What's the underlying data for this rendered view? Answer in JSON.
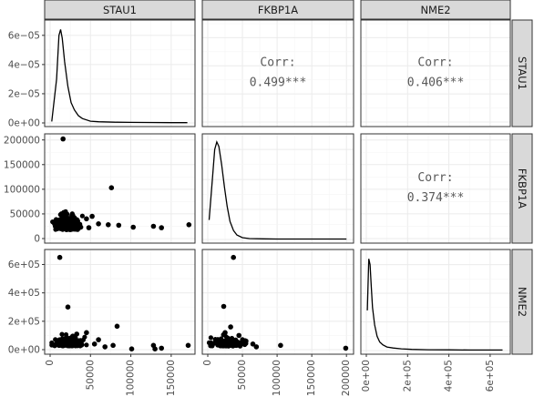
{
  "chart_data": {
    "type": "scatter",
    "title": "",
    "variables": [
      "STAU1",
      "FKBP1A",
      "NME2"
    ],
    "scales": {
      "STAU1": {
        "lim": [
          0,
          175000
        ],
        "ticks": [
          0,
          50000,
          100000,
          150000
        ],
        "tick_labels": [
          "0",
          "50000",
          "100000",
          "150000"
        ]
      },
      "FKBP1A": {
        "lim": [
          0,
          205000
        ],
        "ticks": [
          0,
          50000,
          100000,
          150000,
          200000
        ],
        "tick_labels": [
          "0",
          "50000",
          "100000",
          "150000",
          "200000"
        ]
      },
      "NME2": {
        "lim": [
          0,
          680000
        ],
        "ticks": [
          0,
          200000,
          400000,
          600000
        ],
        "tick_labels": [
          "0e+00",
          "2e+05",
          "4e+05",
          "6e+05"
        ]
      }
    },
    "density_y_axis": {
      "lim": [
        0,
        6.8e-05
      ],
      "ticks": [
        0,
        2e-05,
        4e-05,
        6e-05
      ],
      "tick_labels": [
        "0e+00",
        "2e−05",
        "4e−05",
        "6e−05"
      ]
    },
    "correlations": [
      {
        "row": "STAU1",
        "col": "FKBP1A",
        "label": "Corr:",
        "value": "0.499***"
      },
      {
        "row": "STAU1",
        "col": "NME2",
        "label": "Corr:",
        "value": "0.406***"
      },
      {
        "row": "FKBP1A",
        "col": "NME2",
        "label": "Corr:",
        "value": "0.374***"
      }
    ],
    "densities": {
      "STAU1": {
        "x": [
          2000,
          8000,
          11000,
          13000,
          15000,
          18000,
          22000,
          26000,
          30000,
          35000,
          40000,
          50000,
          60000,
          80000,
          100000,
          120000,
          150000,
          170000
        ],
        "y": [
          1e-06,
          3e-05,
          6e-05,
          6.4e-05,
          5.8e-05,
          4.2e-05,
          2.5e-05,
          1.4e-05,
          9e-06,
          5e-06,
          3e-06,
          1.2e-06,
          8e-07,
          5e-07,
          4e-07,
          3e-07,
          2e-07,
          2e-07
        ]
      },
      "FKBP1A": {
        "x": [
          2000,
          7000,
          10000,
          13000,
          16000,
          20000,
          24000,
          28000,
          32000,
          37000,
          42000,
          50000,
          60000,
          80000,
          100000,
          130000,
          160000,
          200000
        ],
        "y": [
          1.3e-05,
          4.2e-05,
          6e-05,
          6.5e-05,
          6.2e-05,
          5e-05,
          3.5e-05,
          2.2e-05,
          1.2e-05,
          6e-06,
          3e-06,
          1.2e-06,
          6e-07,
          4e-07,
          3e-07,
          3e-07,
          3e-07,
          3e-07
        ]
      },
      "NME2": {
        "x": [
          5000,
          12000,
          18000,
          24000,
          30000,
          40000,
          52000,
          65000,
          80000,
          100000,
          130000,
          170000,
          220000,
          300000,
          400000,
          500000,
          600000,
          660000
        ],
        "y": [
          2.8e-05,
          6.4e-05,
          6e-05,
          4.5e-05,
          3e-05,
          1.8e-05,
          1e-05,
          6e-06,
          4e-06,
          2.5e-06,
          1.8e-06,
          1.2e-06,
          8e-07,
          6e-07,
          5e-07,
          4e-07,
          4e-07,
          4e-07
        ]
      }
    },
    "scatter_panels": [
      {
        "row": "FKBP1A",
        "col": "STAU1",
        "outliers": [
          [
            16000,
            202000
          ],
          [
            76000,
            103000
          ],
          [
            45000,
            40000
          ],
          [
            60000,
            30000
          ],
          [
            72000,
            28000
          ],
          [
            85000,
            27000
          ],
          [
            103000,
            23000
          ],
          [
            128000,
            25000
          ],
          [
            138000,
            22000
          ],
          [
            172000,
            28000
          ],
          [
            52000,
            45000
          ],
          [
            48000,
            22000
          ]
        ],
        "cluster": {
          "x_range": [
            3000,
            40000
          ],
          "y_range": [
            3000,
            68000
          ]
        }
      },
      {
        "row": "NME2",
        "col": "STAU1",
        "outliers": [
          [
            12000,
            650000
          ],
          [
            22000,
            300000
          ],
          [
            83000,
            165000
          ],
          [
            45000,
            120000
          ],
          [
            33000,
            110000
          ],
          [
            28000,
            95000
          ],
          [
            60000,
            70000
          ],
          [
            78000,
            30000
          ],
          [
            101000,
            5000
          ],
          [
            128000,
            30000
          ],
          [
            130000,
            5000
          ],
          [
            138000,
            10000
          ],
          [
            171000,
            30000
          ],
          [
            55000,
            40000
          ],
          [
            68000,
            20000
          ]
        ],
        "cluster": {
          "x_range": [
            2000,
            45000
          ],
          "y_range": [
            0,
            110000
          ]
        }
      },
      {
        "row": "NME2",
        "col": "FKBP1A",
        "outliers": [
          [
            37000,
            650000
          ],
          [
            23000,
            305000
          ],
          [
            33000,
            160000
          ],
          [
            25000,
            120000
          ],
          [
            45000,
            100000
          ],
          [
            55000,
            60000
          ],
          [
            65000,
            40000
          ],
          [
            105000,
            30000
          ],
          [
            199000,
            10000
          ],
          [
            70000,
            20000
          ]
        ],
        "cluster": {
          "x_range": [
            2000,
            55000
          ],
          "y_range": [
            0,
            105000
          ]
        }
      }
    ],
    "grid": true,
    "legend": "none"
  }
}
